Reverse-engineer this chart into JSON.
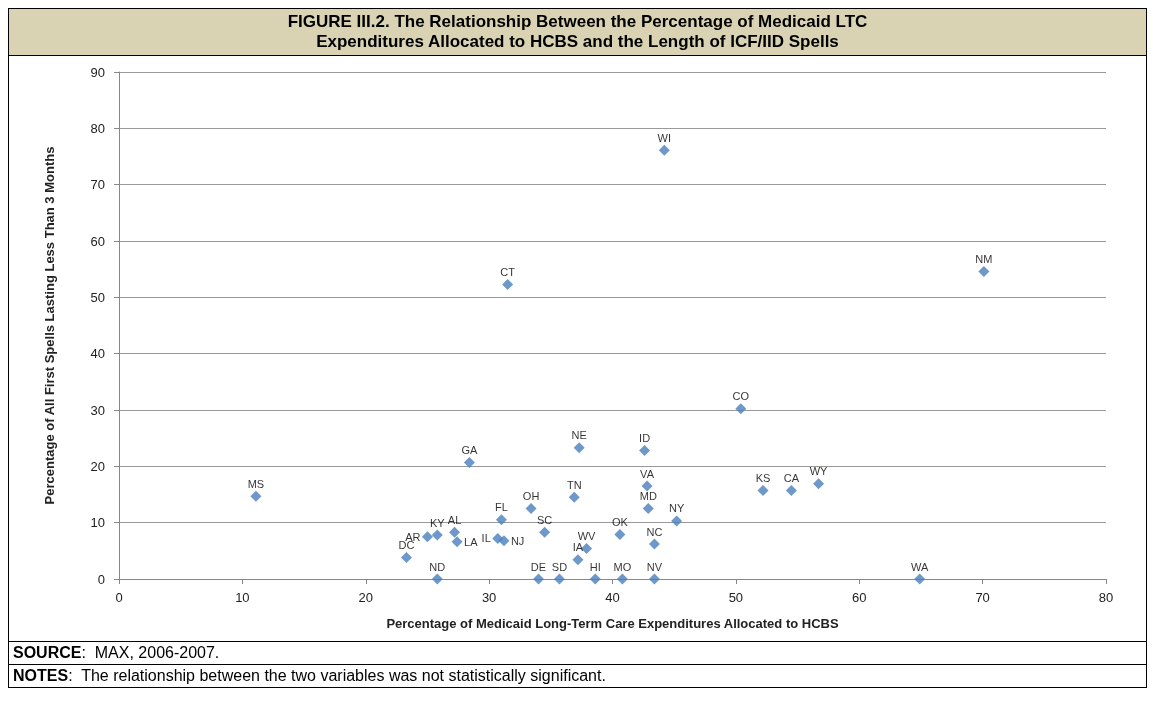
{
  "chart_data": {
    "type": "scatter",
    "title": "FIGURE III.2. The Relationship Between the Percentage of Medicaid LTC Expenditures Allocated to HCBS and the Length of ICF/IID Spells",
    "xlabel": "Percentage of Medicaid Long-Term Care Expenditures Allocated to HCBS",
    "ylabel": "Percentage of All First Spells Lasting Less Than 3 Months",
    "xlim": [
      0,
      80
    ],
    "xticks": [
      0,
      10,
      20,
      30,
      40,
      50,
      60,
      70,
      80
    ],
    "ylim": [
      0,
      90
    ],
    "yticks": [
      0,
      10,
      20,
      30,
      40,
      50,
      60,
      70,
      80,
      90
    ],
    "grid": "y",
    "marker": "diamond",
    "series": [
      {
        "color": "#4a7ebb",
        "x": [
          11.1,
          23.3,
          25.8,
          25.0,
          25.8,
          27.2,
          27.4,
          28.4,
          31.0,
          30.7,
          31.2,
          33.4,
          34.5,
          34.0,
          35.7,
          37.3,
          36.9,
          37.2,
          37.9,
          38.6,
          40.8,
          40.6,
          42.6,
          42.8,
          42.9,
          43.4,
          43.4,
          45.2,
          44.2,
          31.5,
          70.1,
          50.4,
          52.2,
          54.5,
          56.7,
          64.9
        ],
        "values": [
          14.7,
          3.8,
          0,
          7.5,
          7.8,
          8.3,
          6.6,
          20.7,
          10.5,
          7.2,
          6.8,
          12.5,
          8.3,
          0,
          0,
          23.3,
          14.5,
          3.4,
          5.4,
          0,
          0,
          7.9,
          22.8,
          16.5,
          12.5,
          6.2,
          0,
          10.3,
          76.1,
          52.3,
          54.6,
          30.2,
          15.7,
          15.7,
          16.9,
          0
        ]
      }
    ],
    "annotations": [
      {
        "text": "MS",
        "x": 11.1,
        "y": 14.7
      },
      {
        "text": "DC",
        "x": 23.3,
        "y": 3.8
      },
      {
        "text": "ND",
        "x": 25.8,
        "y": 0
      },
      {
        "text": "AR",
        "x": 25.0,
        "y": 7.5
      },
      {
        "text": "KY",
        "x": 25.8,
        "y": 7.8
      },
      {
        "text": "AL",
        "x": 27.2,
        "y": 8.3
      },
      {
        "text": "LA",
        "x": 27.4,
        "y": 6.6
      },
      {
        "text": "GA",
        "x": 28.4,
        "y": 20.7
      },
      {
        "text": "FL",
        "x": 31.0,
        "y": 10.5
      },
      {
        "text": "IL",
        "x": 30.7,
        "y": 7.2
      },
      {
        "text": "NJ",
        "x": 31.2,
        "y": 6.8
      },
      {
        "text": "OH",
        "x": 33.4,
        "y": 12.5
      },
      {
        "text": "SC",
        "x": 34.5,
        "y": 8.3
      },
      {
        "text": "DE",
        "x": 34.0,
        "y": 0
      },
      {
        "text": "SD",
        "x": 35.7,
        "y": 0
      },
      {
        "text": "NE",
        "x": 37.3,
        "y": 23.3
      },
      {
        "text": "TN",
        "x": 36.9,
        "y": 14.5
      },
      {
        "text": "IA",
        "x": 37.2,
        "y": 3.4
      },
      {
        "text": "WV",
        "x": 37.9,
        "y": 5.4
      },
      {
        "text": "HI",
        "x": 38.6,
        "y": 0
      },
      {
        "text": "MO",
        "x": 40.8,
        "y": 0
      },
      {
        "text": "OK",
        "x": 40.6,
        "y": 7.9
      },
      {
        "text": "ID",
        "x": 42.6,
        "y": 22.8
      },
      {
        "text": "VA",
        "x": 42.8,
        "y": 16.5
      },
      {
        "text": "MD",
        "x": 42.9,
        "y": 12.5
      },
      {
        "text": "NC",
        "x": 43.4,
        "y": 6.2
      },
      {
        "text": "NV",
        "x": 43.4,
        "y": 0
      },
      {
        "text": "NY",
        "x": 45.2,
        "y": 10.3
      },
      {
        "text": "WI",
        "x": 44.2,
        "y": 76.1
      },
      {
        "text": "CT",
        "x": 31.5,
        "y": 52.3
      },
      {
        "text": "NM",
        "x": 70.1,
        "y": 54.6
      },
      {
        "text": "CO",
        "x": 50.4,
        "y": 30.2
      },
      {
        "text": "KS",
        "x": 52.2,
        "y": 15.7
      },
      {
        "text": "CA",
        "x": 54.5,
        "y": 15.7
      },
      {
        "text": "WY",
        "x": 56.7,
        "y": 16.9
      },
      {
        "text": "WA",
        "x": 64.9,
        "y": 0
      },
      "SOURCE:  MAX, 2006-2007.",
      "NOTES:  The relationship between the two variables was not statistically significant."
    ]
  }
}
